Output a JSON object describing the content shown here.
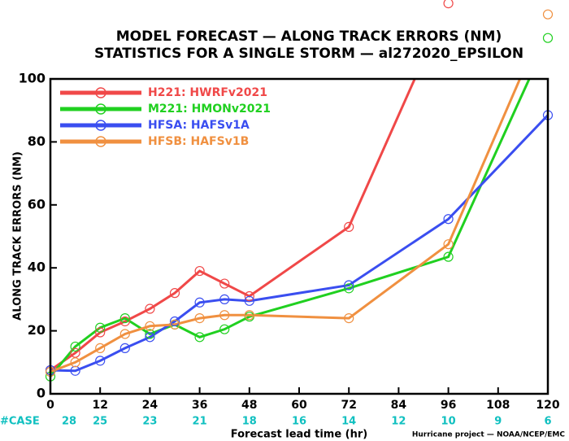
{
  "chart_data": {
    "type": "line",
    "title": "MODEL FORECAST — ALONG TRACK ERRORS (NM)",
    "subtitle": "STATISTICS FOR A SINGLE STORM — al272020_EPSILON",
    "x_label": "Forecast lead time (hr)",
    "y_label": "ALONG TRACK ERRORS (NM)",
    "x": [
      0,
      6,
      12,
      18,
      24,
      30,
      36,
      42,
      48,
      72,
      96,
      120
    ],
    "series": [
      {
        "name": "H221: HWRFv2021",
        "color": "#f04848",
        "values": [
          7.5,
          13,
          19.5,
          23,
          27,
          32,
          39,
          35,
          31,
          53,
          124,
          null
        ]
      },
      {
        "name": "M221: HMONv2021",
        "color": "#20d020",
        "values": [
          5.5,
          15,
          21,
          24,
          19,
          22,
          18,
          20.5,
          24.5,
          33.5,
          43.5,
          113
        ]
      },
      {
        "name": "HFSA: HAFSv1A",
        "color": "#3a4ef0",
        "values": [
          7.5,
          7.3,
          10.5,
          14.5,
          18,
          23,
          29,
          30,
          29.5,
          34.5,
          55.5,
          88.5
        ]
      },
      {
        "name": "HFSB: HAFSv1B",
        "color": "#f09040",
        "values": [
          7,
          10,
          14.5,
          19,
          21.5,
          22,
          24,
          25,
          25,
          24,
          47.5,
          120.5
        ]
      }
    ],
    "xlim": [
      0,
      120
    ],
    "xticks": [
      0,
      12,
      24,
      36,
      48,
      60,
      72,
      84,
      96,
      108,
      120
    ],
    "ylim": [
      0,
      100
    ],
    "yticks": [
      0,
      20,
      40,
      60,
      80,
      100
    ],
    "legend": "upper left",
    "case_label": "#CASE",
    "case_color": "#10c0c0",
    "case_counts": [
      28,
      25,
      23,
      21,
      18,
      16,
      14,
      12,
      10,
      9,
      6
    ],
    "footer": "Hurricane project — NOAA/NCEP/EMC"
  }
}
